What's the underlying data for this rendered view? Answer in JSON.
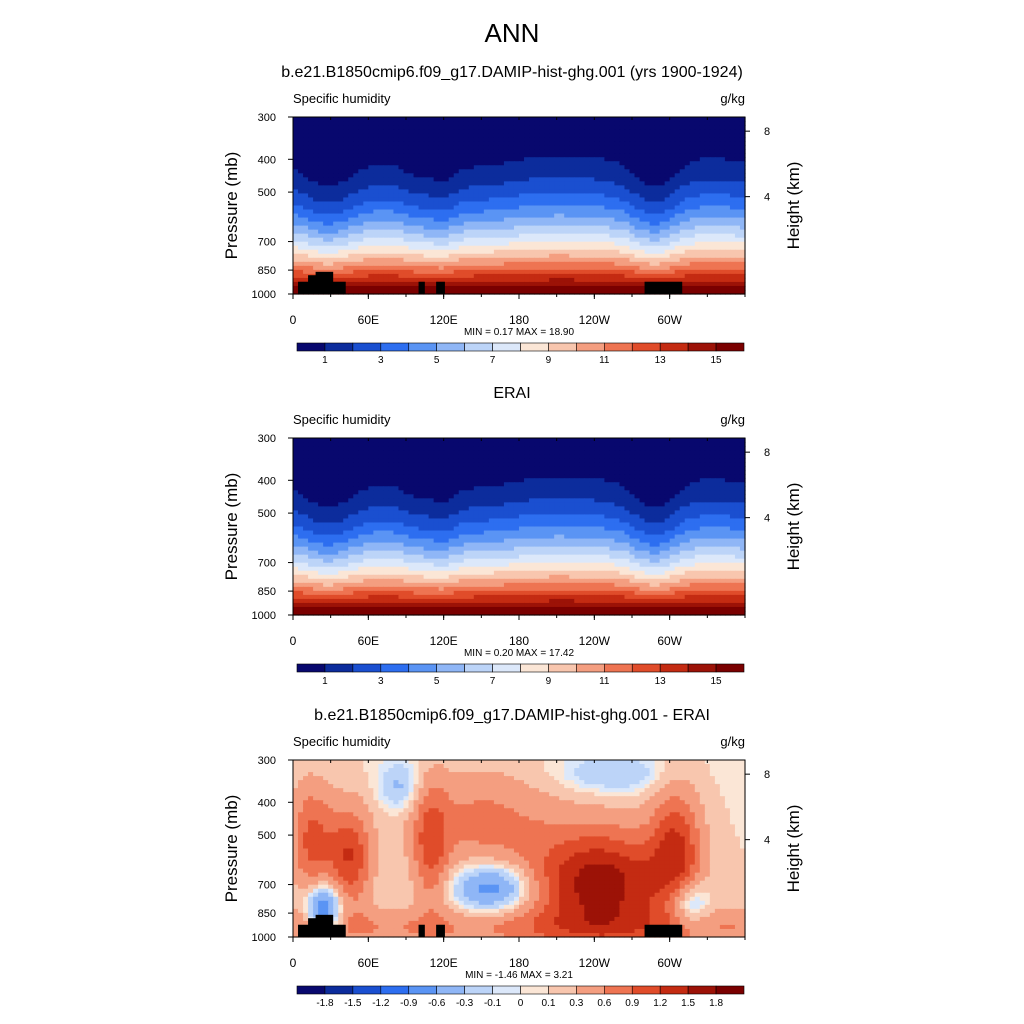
{
  "page_title": "ANN",
  "colors": {
    "abs_scale": [
      "#08086e",
      "#0c2c9c",
      "#1a4fd0",
      "#2d6ef0",
      "#5a94f4",
      "#8fb6f6",
      "#bcd4f8",
      "#dce8fa",
      "#fbe6d6",
      "#f8c6ae",
      "#f49e80",
      "#ee7452",
      "#e04c2a",
      "#c42b12",
      "#9c1207",
      "#7a0000"
    ],
    "diff_scale": [
      "#08086e",
      "#0c2c9c",
      "#1a4fd0",
      "#2d6ef0",
      "#5a94f4",
      "#8fb6f6",
      "#bcd4f8",
      "#dce8fa",
      "#fbe6d6",
      "#f8c6ae",
      "#f49e80",
      "#ee7452",
      "#e04c2a",
      "#c42b12",
      "#9c1207",
      "#7a0000"
    ],
    "topography": "#000000"
  },
  "chart_data": [
    {
      "type": "heatmap",
      "title": "b.e21.B1850cmip6.f09_g17.DAMIP-hist-ghg.001 (yrs 1900-1924)",
      "left_label": "Specific humidity",
      "right_label": "g/kg",
      "ylabel": "Pressure (mb)",
      "y2label": "Height (km)",
      "x_ticks": [
        "0",
        "60E",
        "120E",
        "180",
        "120W",
        "60W"
      ],
      "x_tick_lon": [
        0,
        60,
        120,
        180,
        240,
        300
      ],
      "xlim": [
        0,
        360
      ],
      "y_ticks": [
        "300",
        "400",
        "500",
        "700",
        "850",
        "1000"
      ],
      "y_tick_p": [
        300,
        400,
        500,
        700,
        850,
        1000
      ],
      "ylim": [
        300,
        1000
      ],
      "y2_ticks": [
        "8",
        "4"
      ],
      "y2_tick_km": [
        8,
        4
      ],
      "stats": "MIN =   0.17  MAX =  18.90",
      "cbar_labels": [
        "1",
        "3",
        "5",
        "7",
        "9",
        "11",
        "13",
        "15"
      ],
      "cbar_levels": [
        1,
        2,
        3,
        4,
        5,
        6,
        7,
        8,
        9,
        10,
        11,
        12,
        13,
        14,
        15
      ],
      "scale": "abs",
      "topography_mask": true,
      "min": 0.17,
      "max": 18.9
    },
    {
      "type": "heatmap",
      "title": "ERAI",
      "left_label": "Specific humidity",
      "right_label": "g/kg",
      "ylabel": "Pressure (mb)",
      "y2label": "Height (km)",
      "x_ticks": [
        "0",
        "60E",
        "120E",
        "180",
        "120W",
        "60W"
      ],
      "x_tick_lon": [
        0,
        60,
        120,
        180,
        240,
        300
      ],
      "xlim": [
        0,
        360
      ],
      "y_ticks": [
        "300",
        "400",
        "500",
        "700",
        "850",
        "1000"
      ],
      "y_tick_p": [
        300,
        400,
        500,
        700,
        850,
        1000
      ],
      "ylim": [
        300,
        1000
      ],
      "y2_ticks": [
        "8",
        "4"
      ],
      "y2_tick_km": [
        8,
        4
      ],
      "stats": "MIN =   0.20  MAX =  17.42",
      "cbar_labels": [
        "1",
        "3",
        "5",
        "7",
        "9",
        "11",
        "13",
        "15"
      ],
      "cbar_levels": [
        1,
        2,
        3,
        4,
        5,
        6,
        7,
        8,
        9,
        10,
        11,
        12,
        13,
        14,
        15
      ],
      "scale": "abs",
      "topography_mask": false,
      "min": 0.2,
      "max": 17.42
    },
    {
      "type": "heatmap",
      "title": "b.e21.B1850cmip6.f09_g17.DAMIP-hist-ghg.001 - ERAI",
      "left_label": "Specific humidity",
      "right_label": "g/kg",
      "ylabel": "Pressure (mb)",
      "y2label": "Height (km)",
      "x_ticks": [
        "0",
        "60E",
        "120E",
        "180",
        "120W",
        "60W"
      ],
      "x_tick_lon": [
        0,
        60,
        120,
        180,
        240,
        300
      ],
      "xlim": [
        0,
        360
      ],
      "y_ticks": [
        "300",
        "400",
        "500",
        "700",
        "850",
        "1000"
      ],
      "y_tick_p": [
        300,
        400,
        500,
        700,
        850,
        1000
      ],
      "ylim": [
        300,
        1000
      ],
      "y2_ticks": [
        "8",
        "4"
      ],
      "y2_tick_km": [
        8,
        4
      ],
      "stats": "MIN =  -1.46  MAX =   3.21",
      "cbar_labels": [
        "-1.8",
        "-1.5",
        "-1.2",
        "-0.9",
        "-0.6",
        "-0.3",
        "-0.1",
        "0",
        "0.1",
        "0.3",
        "0.6",
        "0.9",
        "1.2",
        "1.5",
        "1.8"
      ],
      "cbar_levels": [
        -1.8,
        -1.5,
        -1.2,
        -0.9,
        -0.6,
        -0.3,
        -0.1,
        0,
        0.1,
        0.3,
        0.6,
        0.9,
        1.2,
        1.5,
        1.8
      ],
      "scale": "diff",
      "topography_mask": true,
      "min": -1.46,
      "max": 3.21
    }
  ]
}
